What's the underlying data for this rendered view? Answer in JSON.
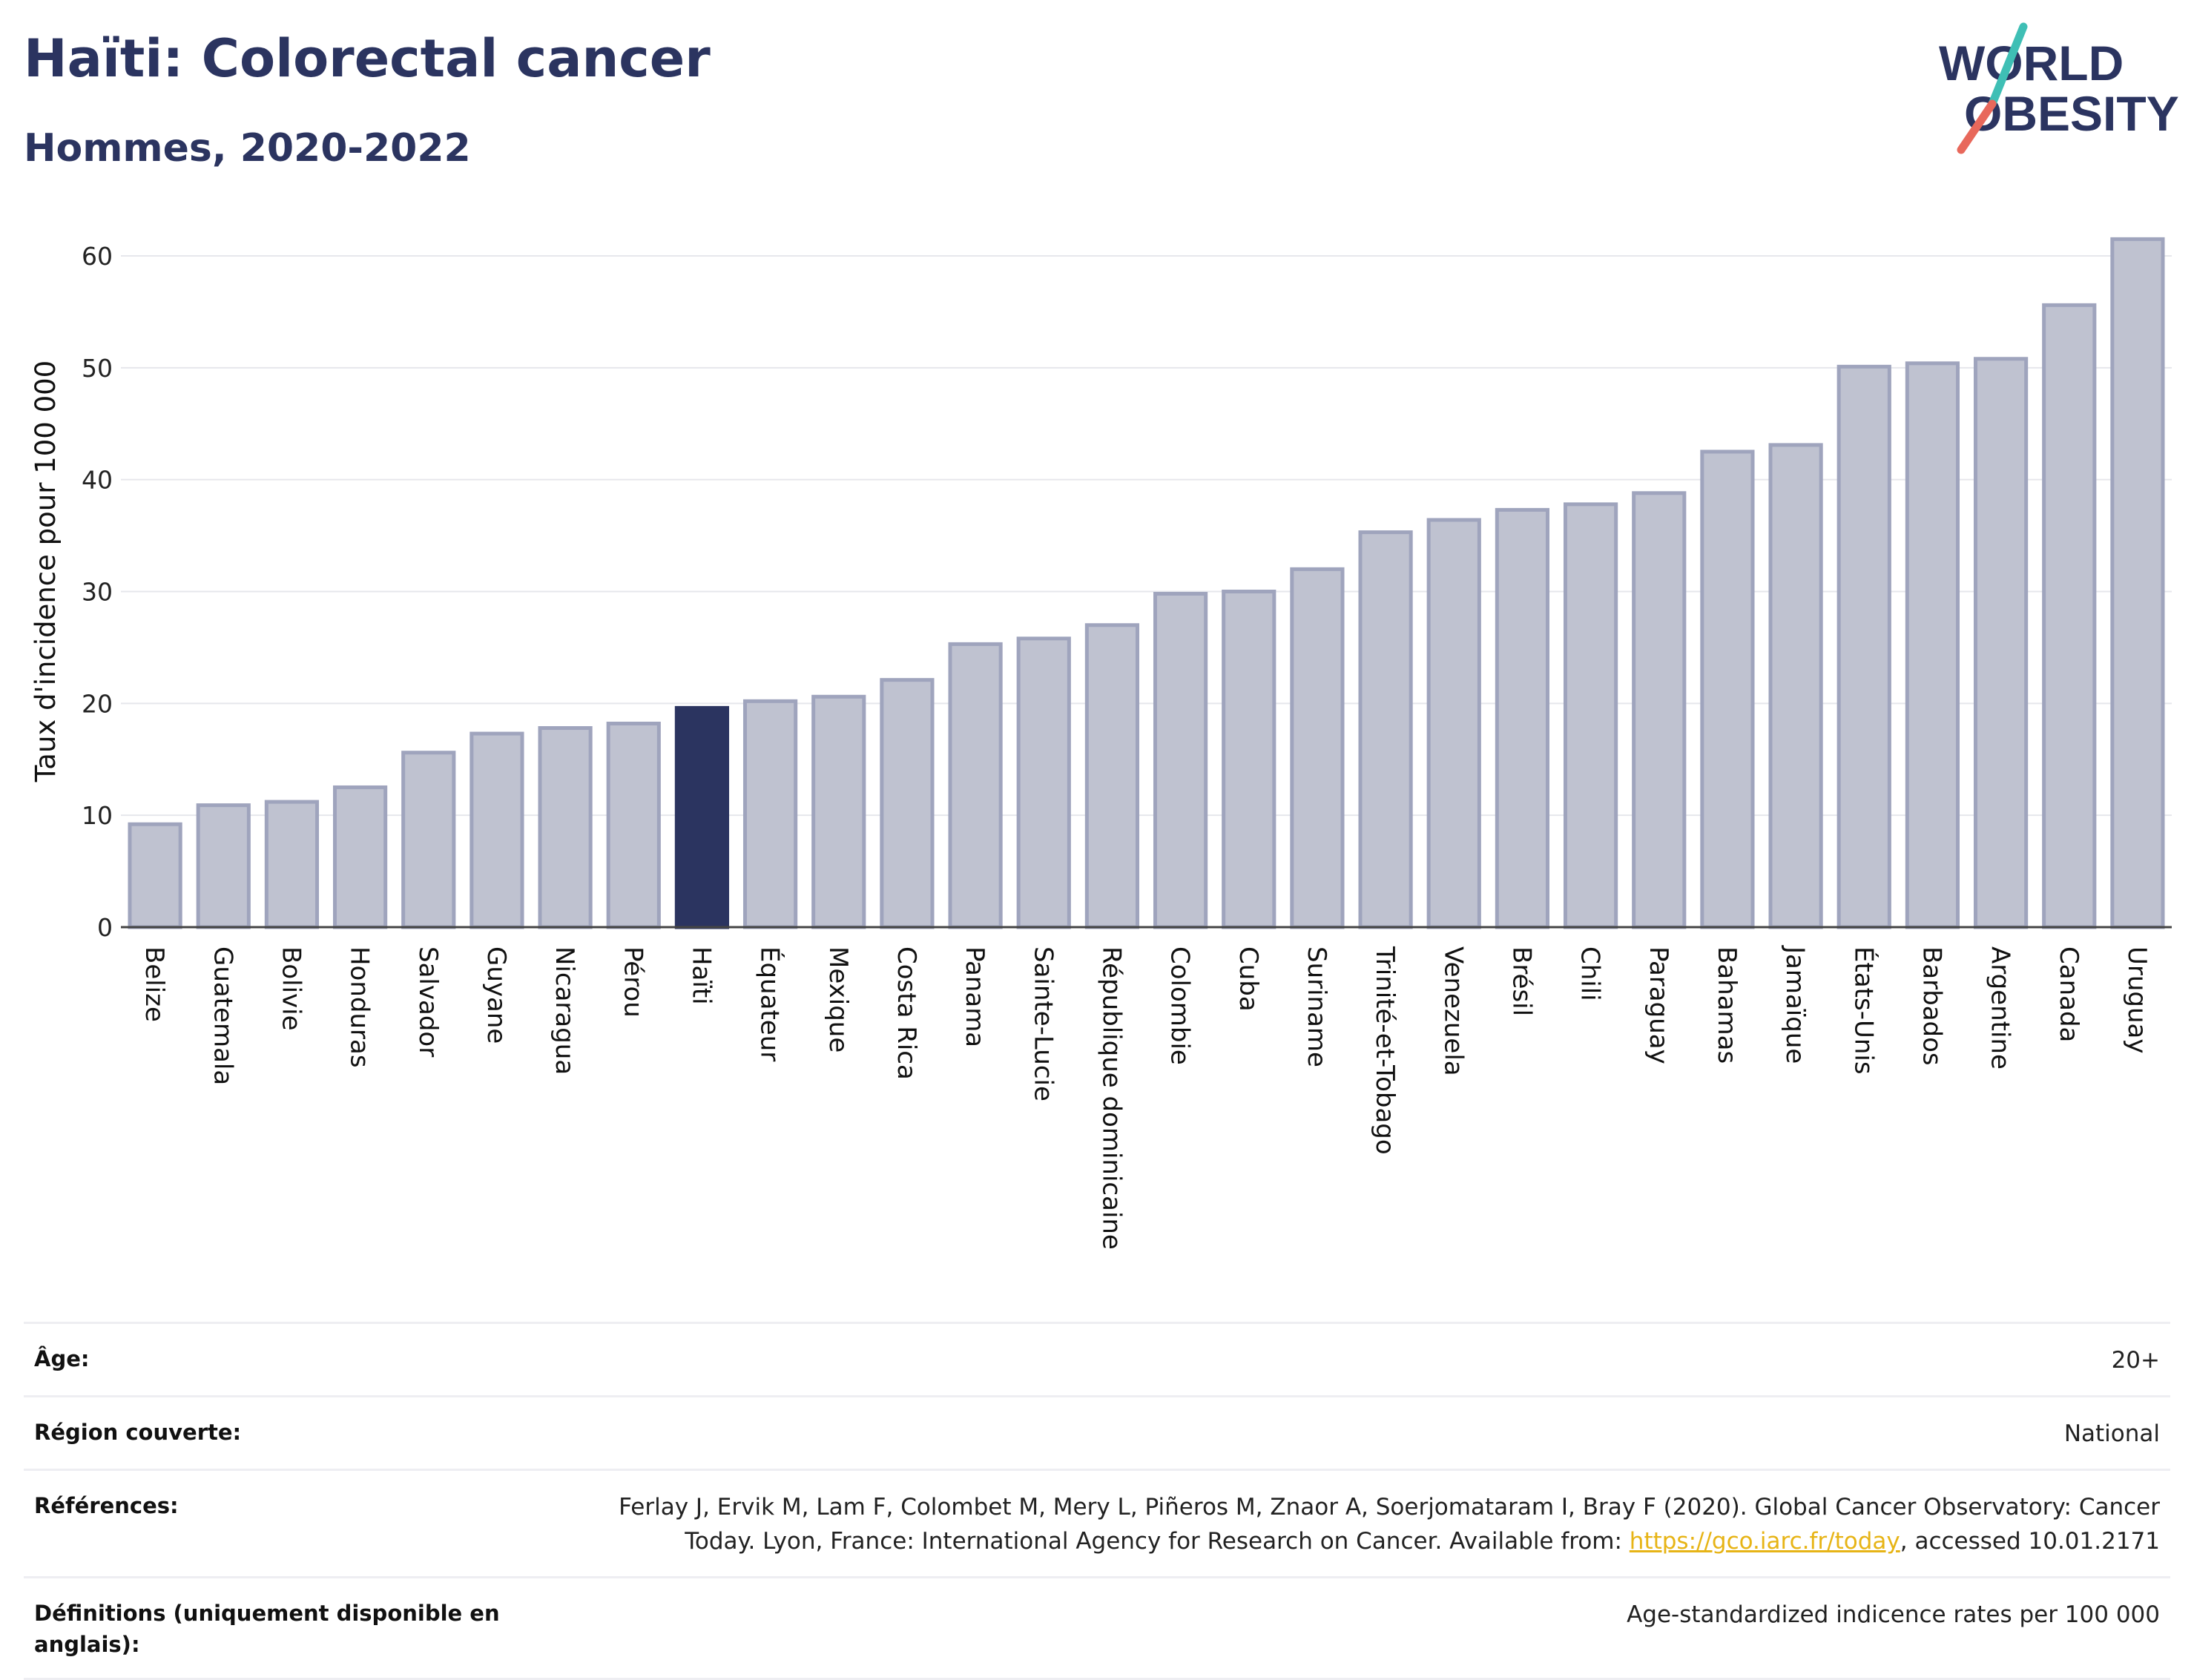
{
  "header": {
    "title": "Haïti: Colorectal cancer",
    "subtitle": "Hommes, 2020-2022"
  },
  "logo": {
    "line1": "WORLD",
    "line2": "OBESITY"
  },
  "colors": {
    "bar_default": "#bfc2d0",
    "bar_default_stroke": "#9fa4bd",
    "bar_highlight": "#2b3460",
    "text_primary": "#2b3460",
    "logo_slash_teal": "#3fbfb5",
    "logo_slash_red": "#e8685b",
    "link": "#e7b416"
  },
  "chart_data": {
    "type": "bar",
    "ylabel": "Taux d'incidence pour 100 000",
    "ylim": [
      0,
      65
    ],
    "yticks": [
      0,
      10,
      20,
      30,
      40,
      50,
      60
    ],
    "grid": true,
    "highlight": "Haïti",
    "categories": [
      "Belize",
      "Guatemala",
      "Bolivie",
      "Honduras",
      "Salvador",
      "Guyane",
      "Nicaragua",
      "Pérou",
      "Haïti",
      "Équateur",
      "Mexique",
      "Costa Rica",
      "Panama",
      "Sainte-Lucie",
      "République dominicaine",
      "Colombie",
      "Cuba",
      "Suriname",
      "Trinité-et-Tobago",
      "Venezuela",
      "Brésil",
      "Chili",
      "Paraguay",
      "Bahamas",
      "Jamaïque",
      "États-Unis",
      "Barbados",
      "Argentine",
      "Canada",
      "Uruguay"
    ],
    "values": [
      9.2,
      10.9,
      11.2,
      12.5,
      15.6,
      17.3,
      17.8,
      18.2,
      19.6,
      20.2,
      20.6,
      22.1,
      25.3,
      25.8,
      27.0,
      29.8,
      30.0,
      32.0,
      35.3,
      36.4,
      37.3,
      37.8,
      38.8,
      42.5,
      43.1,
      50.1,
      50.4,
      50.8,
      55.6,
      61.5
    ]
  },
  "info": {
    "rows": [
      {
        "label": "Âge:",
        "value": "20+"
      },
      {
        "label": "Région couverte:",
        "value": "National"
      },
      {
        "label": "Références:",
        "value_before": "Ferlay J, Ervik M, Lam F, Colombet M, Mery L, Piñeros M, Znaor A, Soerjomataram I, Bray F (2020). Global Cancer Observatory: Cancer Today. Lyon, France: International Agency for Research on Cancer. Available from: ",
        "link": "https://gco.iarc.fr/today",
        "value_after": ", accessed 10.01.2171"
      },
      {
        "label": "Définitions (uniquement disponible en anglais):",
        "value": "Age-standardized indicence rates per 100 000"
      }
    ]
  }
}
